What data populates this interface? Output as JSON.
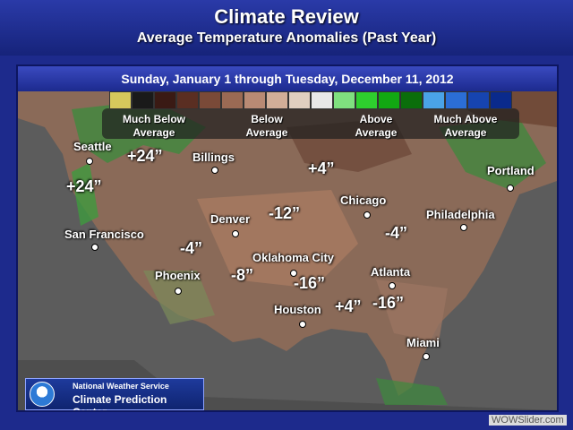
{
  "header": {
    "title": "Climate Review",
    "subtitle": "Average Temperature Anomalies (Past Year)"
  },
  "date_range": "Sunday, January 1 through Tuesday, December 11, 2012",
  "legend": {
    "colors": [
      "#d6c85c",
      "#1a1a1a",
      "#3a1a14",
      "#5a2e22",
      "#7a4a38",
      "#9a6a54",
      "#b88a74",
      "#d1ae98",
      "#e0cfc0",
      "#e8e8e8",
      "#7fe07f",
      "#2ecf2e",
      "#12a812",
      "#0b6e0b",
      "#4aa3e8",
      "#2b6ed6",
      "#1644b0",
      "#0a2a8c"
    ],
    "labels": [
      "Much Below Average",
      "Below Average",
      "Above Average",
      "Much Above Average"
    ]
  },
  "cities": [
    {
      "name": "Seattle"
    },
    {
      "name": "Billings"
    },
    {
      "name": "Portland"
    },
    {
      "name": "Chicago"
    },
    {
      "name": "Denver"
    },
    {
      "name": "Philadelphia"
    },
    {
      "name": "San Francisco"
    },
    {
      "name": "Oklahoma City"
    },
    {
      "name": "Phoenix"
    },
    {
      "name": "Atlanta"
    },
    {
      "name": "Houston"
    },
    {
      "name": "Miami"
    }
  ],
  "anomalies": [
    "+24”",
    "+24”",
    "+4”",
    "-12”",
    "-4”",
    "-4”",
    "-8”",
    "-16”",
    "+4”",
    "-16”"
  ],
  "footer": {
    "org1": "National Weather Service",
    "org2": "Climate Prediction Center"
  },
  "watermark": "WOWSlider.com"
}
